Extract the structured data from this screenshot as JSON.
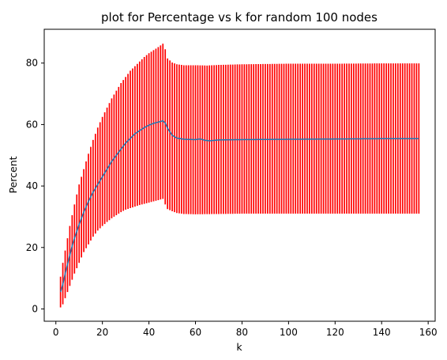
{
  "chart_data": {
    "type": "line",
    "title": "plot for Percentage vs k for random 100 nodes",
    "xlabel": "k",
    "ylabel": "Percent",
    "xlim": [
      -5,
      163
    ],
    "ylim": [
      -4,
      91
    ],
    "grid": false,
    "legend": "none",
    "x_ticks": [
      0,
      20,
      40,
      60,
      80,
      100,
      120,
      140,
      160
    ],
    "x_tick_labels": [
      "0",
      "20",
      "40",
      "60",
      "80",
      "100",
      "120",
      "140",
      "160"
    ],
    "y_ticks": [
      0,
      20,
      40,
      60,
      80
    ],
    "y_tick_labels": [
      "0",
      "20",
      "40",
      "60",
      "80"
    ],
    "series": [
      {
        "kind": "mean-line",
        "color": "#1f77b4",
        "x_range": [
          2,
          156
        ],
        "anchors": [
          [
            2,
            5.5
          ],
          [
            3,
            8
          ],
          [
            4,
            11.5
          ],
          [
            5,
            14.5
          ],
          [
            6,
            17.5
          ],
          [
            7,
            20.5
          ],
          [
            8,
            23
          ],
          [
            10,
            27.5
          ],
          [
            12,
            31.5
          ],
          [
            14,
            35
          ],
          [
            16,
            38
          ],
          [
            18,
            40.5
          ],
          [
            20,
            43
          ],
          [
            22,
            45.5
          ],
          [
            24,
            48
          ],
          [
            26,
            50
          ],
          [
            28,
            52
          ],
          [
            30,
            54
          ],
          [
            32,
            55.5
          ],
          [
            34,
            57
          ],
          [
            36,
            58
          ],
          [
            38,
            59
          ],
          [
            40,
            59.8
          ],
          [
            42,
            60.4
          ],
          [
            44,
            60.8
          ],
          [
            46,
            61.2
          ],
          [
            47,
            60.5
          ],
          [
            48,
            58.8
          ],
          [
            50,
            56.5
          ],
          [
            52,
            55.6
          ],
          [
            55,
            55.2
          ],
          [
            60,
            55.1
          ],
          [
            62,
            55.3
          ],
          [
            64,
            54.9
          ],
          [
            66,
            54.7
          ],
          [
            70,
            55
          ],
          [
            80,
            55.1
          ],
          [
            100,
            55.2
          ],
          [
            120,
            55.3
          ],
          [
            140,
            55.4
          ],
          [
            156,
            55.4
          ]
        ]
      },
      {
        "kind": "error-bars",
        "color": "#ff0000",
        "x_range": [
          2,
          156
        ],
        "upper_anchors": [
          [
            2,
            10.5
          ],
          [
            3,
            15
          ],
          [
            4,
            19
          ],
          [
            5,
            23
          ],
          [
            6,
            27
          ],
          [
            7,
            30.5
          ],
          [
            8,
            34
          ],
          [
            10,
            40.5
          ],
          [
            12,
            45.5
          ],
          [
            14,
            50.5
          ],
          [
            16,
            55
          ],
          [
            18,
            59
          ],
          [
            20,
            62.5
          ],
          [
            22,
            65.5
          ],
          [
            24,
            68.5
          ],
          [
            26,
            71
          ],
          [
            28,
            73.5
          ],
          [
            30,
            75.5
          ],
          [
            32,
            77.5
          ],
          [
            34,
            79
          ],
          [
            36,
            80.5
          ],
          [
            38,
            82
          ],
          [
            40,
            83.2
          ],
          [
            42,
            84.2
          ],
          [
            44,
            85.2
          ],
          [
            46,
            86.3
          ],
          [
            47,
            84.5
          ],
          [
            48,
            81.5
          ],
          [
            50,
            80.2
          ],
          [
            52,
            79.6
          ],
          [
            55,
            79.3
          ],
          [
            60,
            79.3
          ],
          [
            65,
            79.2
          ],
          [
            70,
            79.4
          ],
          [
            80,
            79.6
          ],
          [
            100,
            79.8
          ],
          [
            120,
            79.8
          ],
          [
            140,
            79.9
          ],
          [
            156,
            79.9
          ]
        ],
        "lower_anchors": [
          [
            2,
            0.5
          ],
          [
            3,
            1.5
          ],
          [
            4,
            3.5
          ],
          [
            5,
            5.5
          ],
          [
            6,
            7.5
          ],
          [
            7,
            9.5
          ],
          [
            8,
            11.5
          ],
          [
            10,
            15
          ],
          [
            12,
            18.5
          ],
          [
            14,
            21
          ],
          [
            16,
            23.5
          ],
          [
            18,
            25.5
          ],
          [
            20,
            27
          ],
          [
            22,
            28.3
          ],
          [
            24,
            29.5
          ],
          [
            26,
            30.5
          ],
          [
            28,
            31.5
          ],
          [
            30,
            32.3
          ],
          [
            32,
            32.8
          ],
          [
            34,
            33.3
          ],
          [
            36,
            33.8
          ],
          [
            38,
            34.2
          ],
          [
            40,
            34.6
          ],
          [
            42,
            35
          ],
          [
            44,
            35.4
          ],
          [
            46,
            35.8
          ],
          [
            47,
            34
          ],
          [
            48,
            32.5
          ],
          [
            50,
            31.8
          ],
          [
            52,
            31.2
          ],
          [
            55,
            30.9
          ],
          [
            60,
            30.8
          ],
          [
            70,
            30.9
          ],
          [
            80,
            31
          ],
          [
            100,
            31
          ],
          [
            120,
            31
          ],
          [
            140,
            31
          ],
          [
            156,
            31
          ]
        ]
      }
    ]
  }
}
